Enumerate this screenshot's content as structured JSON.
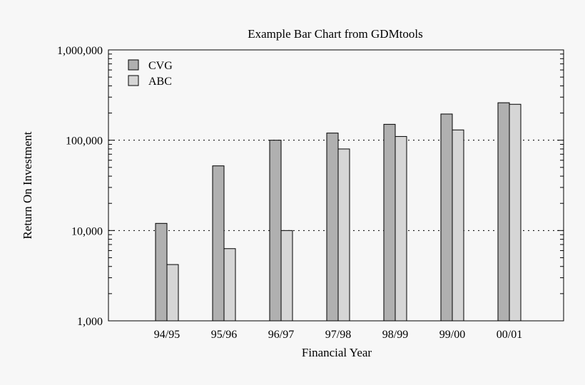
{
  "chart_data": {
    "type": "bar",
    "title": "Example Bar Chart from GDMtools",
    "xlabel": "Financial Year",
    "ylabel": "Return On Investment",
    "yscale": "log",
    "ylim": [
      1000,
      1000000
    ],
    "yticks": [
      {
        "value": 1000,
        "label": "1,000"
      },
      {
        "value": 10000,
        "label": "10,000"
      },
      {
        "value": 100000,
        "label": "100,000"
      },
      {
        "value": 1000000,
        "label": "1,000,000"
      }
    ],
    "grid": "dotted horizontal at major ticks",
    "legend_position": "top-left",
    "categories": [
      "94/95",
      "95/96",
      "96/97",
      "97/98",
      "98/99",
      "99/00",
      "00/01"
    ],
    "series": [
      {
        "name": "CVG",
        "color": "#b0b0b0",
        "values": [
          12000,
          52000,
          100000,
          120000,
          150000,
          195000,
          260000
        ]
      },
      {
        "name": "ABC",
        "color": "#d6d6d6",
        "values": [
          4200,
          6300,
          10000,
          80000,
          110000,
          130000,
          250000
        ]
      }
    ]
  }
}
